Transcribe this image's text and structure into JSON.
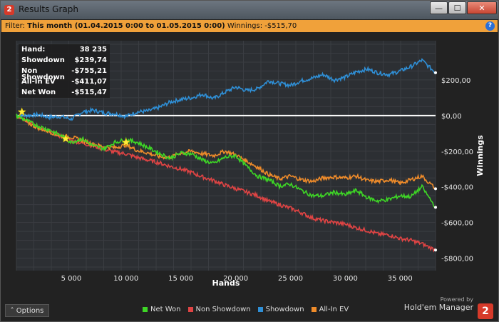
{
  "window": {
    "title": "Results Graph",
    "app_icon": "2",
    "buttons": {
      "minimize": "—",
      "maximize": "☐",
      "close": "✕"
    }
  },
  "filter": {
    "label": "Filter:",
    "range": "This month (01.04.2015 0:00 to 01.05.2015 0:00)",
    "winnings_label": "Winnings:",
    "winnings": "-$515,70",
    "help": "?"
  },
  "stats": [
    {
      "label": "Hand:",
      "value": "38 235"
    },
    {
      "label": "Showdown",
      "value": "$239,74"
    },
    {
      "label": "Non Showdown",
      "value": "-$755,21"
    },
    {
      "label": "All-In EV",
      "value": "-$411,07"
    },
    {
      "label": "Net Won",
      "value": "-$515,47"
    }
  ],
  "chart_data": {
    "type": "line",
    "xlabel": "Hands",
    "ylabel": "Winnings",
    "xlim": [
      0,
      38235
    ],
    "ylim": [
      -870,
      420
    ],
    "x_ticks": [
      5000,
      10000,
      15000,
      20000,
      25000,
      30000,
      35000
    ],
    "x_tick_labels": [
      "5 000",
      "10 000",
      "15 000",
      "20 000",
      "25 000",
      "30 000",
      "35 000"
    ],
    "y_ticks": [
      200,
      0,
      -200,
      -400,
      -600,
      -800
    ],
    "y_tick_labels": [
      "$200,00",
      "$0,00",
      "-$200,00",
      "-$400,00",
      "-$600,00",
      "-$800,00"
    ],
    "grid": true,
    "legend_position": "bottom",
    "series": [
      {
        "name": "Net Won",
        "color": "#3ed626",
        "x": [
          0,
          1000,
          2000,
          3000,
          4000,
          5000,
          6000,
          7000,
          8000,
          9000,
          10000,
          11000,
          12000,
          13000,
          14000,
          15000,
          16000,
          17000,
          18000,
          19000,
          20000,
          21000,
          22000,
          23000,
          24000,
          25000,
          26000,
          27000,
          28000,
          29000,
          30000,
          31000,
          32000,
          33000,
          34000,
          35000,
          36000,
          37000,
          38235
        ],
        "y": [
          0,
          -30,
          -60,
          -80,
          -110,
          -150,
          -130,
          -170,
          -185,
          -150,
          -135,
          -150,
          -180,
          -210,
          -240,
          -210,
          -215,
          -250,
          -270,
          -235,
          -225,
          -285,
          -340,
          -360,
          -395,
          -385,
          -420,
          -450,
          -450,
          -430,
          -445,
          -420,
          -460,
          -480,
          -470,
          -450,
          -455,
          -400,
          -515
        ]
      },
      {
        "name": "Non Showdown",
        "color": "#e04444",
        "x": [
          0,
          1000,
          2000,
          3000,
          4000,
          5000,
          6000,
          7000,
          8000,
          9000,
          10000,
          11000,
          12000,
          13000,
          14000,
          15000,
          16000,
          17000,
          18000,
          19000,
          20000,
          21000,
          22000,
          23000,
          24000,
          25000,
          26000,
          27000,
          28000,
          29000,
          30000,
          31000,
          32000,
          33000,
          34000,
          35000,
          36000,
          37000,
          38235
        ],
        "y": [
          0,
          -30,
          -65,
          -90,
          -115,
          -140,
          -155,
          -170,
          -190,
          -205,
          -215,
          -235,
          -250,
          -265,
          -285,
          -300,
          -320,
          -345,
          -365,
          -390,
          -410,
          -430,
          -450,
          -480,
          -500,
          -520,
          -545,
          -575,
          -590,
          -600,
          -610,
          -630,
          -645,
          -665,
          -670,
          -690,
          -700,
          -720,
          -755
        ]
      },
      {
        "name": "Showdown",
        "color": "#2f8fd6",
        "x": [
          0,
          1000,
          2000,
          3000,
          4000,
          5000,
          6000,
          7000,
          8000,
          9000,
          10000,
          11000,
          12000,
          13000,
          14000,
          15000,
          16000,
          17000,
          18000,
          19000,
          20000,
          21000,
          22000,
          23000,
          24000,
          25000,
          26000,
          27000,
          28000,
          29000,
          30000,
          31000,
          32000,
          33000,
          34000,
          35000,
          36000,
          37000,
          38235
        ],
        "y": [
          0,
          0,
          5,
          -10,
          -5,
          -20,
          20,
          30,
          15,
          10,
          -5,
          20,
          25,
          45,
          75,
          90,
          100,
          120,
          95,
          130,
          160,
          140,
          150,
          195,
          180,
          170,
          195,
          210,
          230,
          200,
          215,
          245,
          260,
          240,
          230,
          250,
          275,
          310,
          240
        ]
      },
      {
        "name": "All-In EV",
        "color": "#f08c2a",
        "x": [
          0,
          1000,
          2000,
          3000,
          4000,
          5000,
          6000,
          7000,
          8000,
          9000,
          10000,
          11000,
          12000,
          13000,
          14000,
          15000,
          16000,
          17000,
          18000,
          19000,
          20000,
          21000,
          22000,
          23000,
          24000,
          25000,
          26000,
          27000,
          28000,
          29000,
          30000,
          31000,
          32000,
          33000,
          34000,
          35000,
          36000,
          37000,
          38235
        ],
        "y": [
          0,
          -40,
          -70,
          -90,
          -115,
          -120,
          -140,
          -160,
          -175,
          -180,
          -165,
          -195,
          -210,
          -230,
          -235,
          -210,
          -200,
          -215,
          -225,
          -200,
          -220,
          -255,
          -290,
          -330,
          -355,
          -340,
          -360,
          -370,
          -350,
          -345,
          -350,
          -340,
          -365,
          -370,
          -360,
          -380,
          -360,
          -340,
          -411
        ]
      }
    ],
    "markers": [
      {
        "x": 500,
        "y": 20,
        "symbol": "star"
      },
      {
        "x": 4500,
        "y": -130,
        "symbol": "star"
      },
      {
        "x": 10000,
        "y": -150,
        "symbol": "star"
      }
    ]
  },
  "bottom": {
    "options_label": "Options",
    "options_icon": "chevron-up",
    "powered_by": "Powered by",
    "brand_name": "Hold'em Manager",
    "brand_logo": "2"
  }
}
